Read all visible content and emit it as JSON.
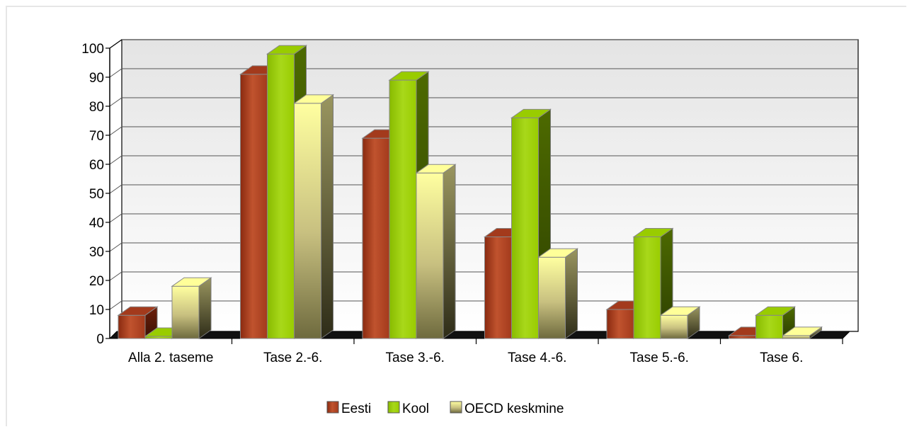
{
  "chart_data": {
    "type": "bar",
    "title": "",
    "xlabel": "",
    "ylabel": "",
    "ylim": [
      0,
      100
    ],
    "y_ticks": [
      "0",
      "10",
      "20",
      "30",
      "40",
      "50",
      "60",
      "70",
      "80",
      "90",
      "100"
    ],
    "grid": true,
    "legend_position": "bottom",
    "categories": [
      "Alla 2. taseme",
      "Tase 2.-6.",
      "Tase 3.-6.",
      "Tase 4.-6.",
      "Tase 5.-6.",
      "Tase 6."
    ],
    "series": [
      {
        "name": "Eesti",
        "color": "#a33a1c",
        "values": [
          8,
          91,
          69,
          35,
          10,
          1
        ]
      },
      {
        "name": "Kool",
        "color": "#99cc00",
        "values": [
          0,
          98,
          89,
          76,
          35,
          8
        ]
      },
      {
        "name": "OECD keskmine",
        "color": "#ffff99",
        "values": [
          18,
          81,
          57,
          28,
          8,
          1
        ]
      }
    ]
  }
}
